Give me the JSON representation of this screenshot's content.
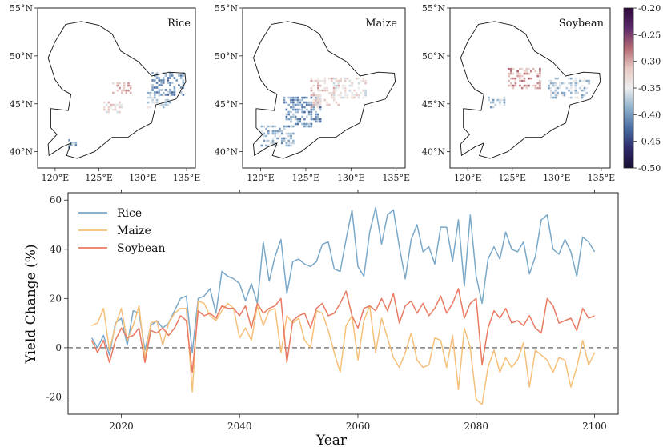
{
  "chart_data": [
    {
      "type": "heatmap",
      "title": "Rice",
      "xticks": [
        "120°E",
        "125°E",
        "130°E",
        "135°E"
      ],
      "yticks": [
        "40°N",
        "45°N",
        "50°N",
        "55°N"
      ],
      "xlim": [
        118,
        136
      ],
      "ylim": [
        38.3,
        55
      ],
      "clusters": [
        {
          "lon": [
            131.0,
            134.5
          ],
          "lat": [
            45.8,
            48.2
          ],
          "value": -0.4
        },
        {
          "lon": [
            130.5,
            133.0
          ],
          "lat": [
            44.5,
            46.2
          ],
          "value": -0.36
        },
        {
          "lon": [
            126.5,
            128.5
          ],
          "lat": [
            46.0,
            47.0
          ],
          "value": -0.3
        },
        {
          "lon": [
            125.5,
            127.5
          ],
          "lat": [
            44.0,
            45.2
          ],
          "value": -0.33
        },
        {
          "lon": [
            121.5,
            122.5
          ],
          "lat": [
            40.3,
            41.2
          ],
          "value": -0.39
        }
      ]
    },
    {
      "type": "heatmap",
      "title": "Maize",
      "xticks": [
        "120°E",
        "125°E",
        "130°E",
        "135°E"
      ],
      "yticks": [
        "40°N",
        "45°N",
        "50°N",
        "55°N"
      ],
      "xlim": [
        118,
        136
      ],
      "ylim": [
        38.3,
        55
      ],
      "clusters": [
        {
          "lon": [
            122.5,
            126.5
          ],
          "lat": [
            42.5,
            45.5
          ],
          "value": -0.4
        },
        {
          "lon": [
            125.5,
            128.5
          ],
          "lat": [
            44.5,
            47.5
          ],
          "value": -0.32
        },
        {
          "lon": [
            120.0,
            123.5
          ],
          "lat": [
            40.5,
            42.5
          ],
          "value": -0.38
        },
        {
          "lon": [
            128.0,
            131.5
          ],
          "lat": [
            45.5,
            47.5
          ],
          "value": -0.34
        }
      ]
    },
    {
      "type": "heatmap",
      "title": "Soybean",
      "xticks": [
        "120°E",
        "125°E",
        "130°E",
        "135°E"
      ],
      "yticks": [
        "40°N",
        "45°N",
        "50°N",
        "55°N"
      ],
      "xlim": [
        118,
        136
      ],
      "ylim": [
        38.3,
        55
      ],
      "clusters": [
        {
          "lon": [
            124.5,
            128.0
          ],
          "lat": [
            46.5,
            48.5
          ],
          "value": -0.3
        },
        {
          "lon": [
            122.0,
            124.0
          ],
          "lat": [
            44.5,
            45.5
          ],
          "value": -0.38
        },
        {
          "lon": [
            129.0,
            133.5
          ],
          "lat": [
            45.5,
            47.5
          ],
          "value": -0.37
        }
      ]
    },
    {
      "type": "colorbar",
      "range": [
        -0.5,
        -0.2
      ],
      "ticks": [
        "-0.20",
        "-0.25",
        "-0.30",
        "-0.35",
        "-0.40",
        "-0.45",
        "-0.50"
      ],
      "colors": [
        "#2d0a3a",
        "#5b2a6b",
        "#b46a73",
        "#e7c8c2",
        "#eeeeee",
        "#8fb0cc",
        "#4a6ea3",
        "#2e2a6a",
        "#1a0f33"
      ]
    },
    {
      "type": "line",
      "xlabel": "Year",
      "ylabel": "Yield Change (%)",
      "xlim": [
        2011,
        2104
      ],
      "ylim": [
        -27,
        63
      ],
      "xticks": [
        "2020",
        "2040",
        "2060",
        "2080",
        "2100"
      ],
      "yticks": [
        "-20",
        "0",
        "20",
        "40",
        "60"
      ],
      "legend": "top-left",
      "x_start": 2015,
      "series": [
        {
          "name": "Rice",
          "color": "#7aa8c8",
          "values": [
            4,
            0,
            5,
            -3,
            10,
            12,
            1,
            15,
            14,
            -1,
            9,
            11,
            8,
            10,
            15,
            20,
            21,
            -2,
            20,
            21,
            24,
            14,
            31,
            29,
            28,
            26,
            19,
            26,
            18,
            43,
            27,
            37,
            44,
            22,
            35,
            36,
            34,
            33,
            35,
            42,
            43,
            32,
            31,
            44,
            56,
            33,
            29,
            47,
            57,
            42,
            54,
            56,
            41,
            28,
            44,
            50,
            39,
            41,
            34,
            49,
            49,
            35,
            52,
            25,
            54,
            29,
            18,
            36,
            41,
            36,
            47,
            40,
            39,
            43,
            30,
            37,
            52,
            54,
            40,
            38,
            44,
            39,
            29,
            45,
            43,
            39
          ]
        },
        {
          "name": "Maize",
          "color": "#f6c07a",
          "values": [
            9,
            10,
            16,
            -1,
            9,
            16,
            3,
            9,
            17,
            -4,
            10,
            11,
            1,
            10,
            14,
            16,
            16,
            -18,
            19,
            18,
            13,
            11,
            15,
            18,
            16,
            4,
            8,
            3,
            17,
            9,
            15,
            16,
            -2,
            13,
            10,
            12,
            3,
            0,
            15,
            14,
            7,
            -2,
            -10,
            9,
            13,
            -5,
            11,
            17,
            -2,
            12,
            4,
            -4,
            -8,
            -2,
            6,
            -5,
            -8,
            -7,
            4,
            3,
            -8,
            5,
            -17,
            8,
            0,
            -21,
            -23,
            -8,
            -1,
            -10,
            -4,
            -8,
            -5,
            2,
            -16,
            -1,
            -3,
            -5,
            -10,
            -4,
            -5,
            -16,
            -8,
            3,
            -7,
            -2
          ]
        },
        {
          "name": "Soybean",
          "color": "#ea7b63",
          "values": [
            3,
            -2,
            3,
            -6,
            3,
            8,
            4,
            5,
            8,
            -6,
            7,
            6,
            8,
            5,
            8,
            13,
            11,
            -10,
            15,
            13,
            14,
            12,
            17,
            16,
            16,
            13,
            17,
            8,
            18,
            14,
            16,
            17,
            20,
            -6,
            11,
            13,
            14,
            8,
            16,
            18,
            13,
            14,
            18,
            23,
            13,
            8,
            16,
            17,
            15,
            20,
            15,
            22,
            10,
            17,
            19,
            14,
            18,
            13,
            16,
            21,
            14,
            18,
            24,
            12,
            18,
            20,
            -7,
            8,
            15,
            12,
            16,
            10,
            11,
            9,
            13,
            8,
            6,
            20,
            17,
            10,
            11,
            12,
            7,
            16,
            12,
            13
          ]
        }
      ]
    }
  ]
}
